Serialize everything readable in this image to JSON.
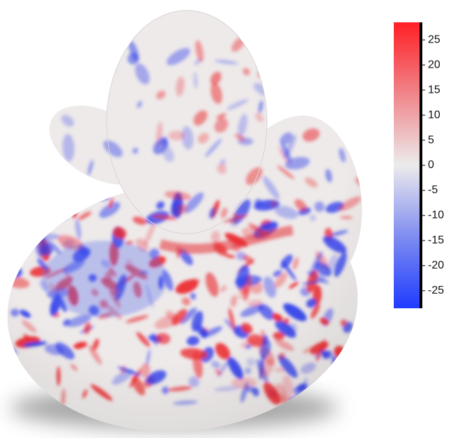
{
  "colorbar": {
    "lim": [
      -28.5,
      28.5
    ],
    "ticks": [
      25,
      20,
      15,
      10,
      5,
      0,
      -5,
      -10,
      -15,
      -20,
      -25
    ]
  }
}
